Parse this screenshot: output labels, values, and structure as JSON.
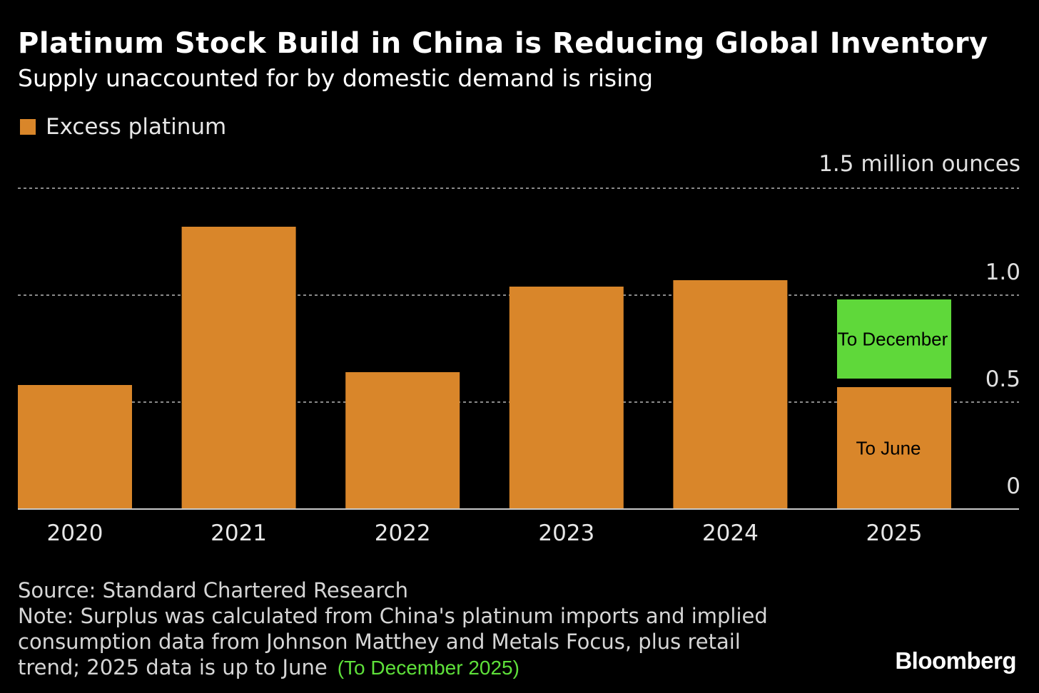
{
  "chart_data": {
    "type": "bar",
    "title": "Platinum Stock Build in China is Reducing Global Inventory",
    "subtitle": "Supply unaccounted for by domestic demand is rising",
    "legend": [
      {
        "label": "Excess platinum",
        "color": "#d9862a"
      }
    ],
    "legend_placement": "top-left",
    "ylabel": "1.5 million ounces",
    "ylim": [
      0,
      1.5
    ],
    "yticks": [
      {
        "value": 0,
        "label": "0"
      },
      {
        "value": 0.5,
        "label": "0.5"
      },
      {
        "value": 1.0,
        "label": "1.0"
      }
    ],
    "grid": true,
    "categories": [
      "2020",
      "2021",
      "2022",
      "2023",
      "2024",
      "2025"
    ],
    "series": [
      {
        "name": "Excess platinum",
        "values": [
          0.58,
          1.32,
          0.64,
          1.04,
          1.07,
          0.57
        ],
        "color": "#d9862a"
      }
    ],
    "annotations": [
      {
        "category": "2025",
        "label": "To June",
        "range": [
          0,
          0.57
        ],
        "color": "#d9862a"
      },
      {
        "category": "2025",
        "label": "To December",
        "range": [
          0.61,
          0.98
        ],
        "color": "#5fd83a"
      }
    ]
  },
  "footer": {
    "source": "Source: Standard Chartered Research",
    "note_lines": [
      "Note: Surplus was calculated from China's platinum imports and implied",
      "consumption data from Johnson Matthey and Metals Focus, plus retail",
      "trend; 2025 data is up to June"
    ],
    "note_annotation": "(To December 2025)",
    "logo": "Bloomberg"
  }
}
